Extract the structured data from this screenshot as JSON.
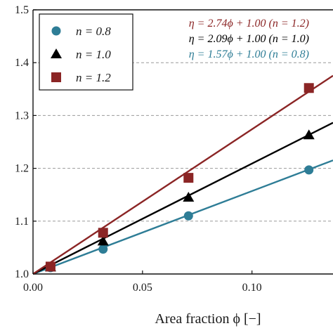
{
  "chart_data": {
    "type": "scatter",
    "xlabel": "Area fraction ϕ [−]",
    "ylabel": "",
    "xlim": [
      0.0,
      0.137
    ],
    "ylim": [
      1.0,
      1.5
    ],
    "x_ticks": [
      "0.00",
      "0.05",
      "0.10"
    ],
    "y_ticks": [
      "1.0",
      "1.1",
      "1.2",
      "1.3",
      "1.4",
      "1.5"
    ],
    "grid": "horizontal dashed",
    "legend_position": "top-left",
    "series": [
      {
        "name": "n = 0.8",
        "marker": "circle",
        "color": "#2e7d96",
        "points": [
          {
            "x": 0.008,
            "y": 1.012
          },
          {
            "x": 0.032,
            "y": 1.047
          },
          {
            "x": 0.071,
            "y": 1.11
          },
          {
            "x": 0.126,
            "y": 1.197
          }
        ],
        "fit": {
          "label": "η = 1.57ϕ + 1.00 (n = 0.8)",
          "slope": 1.57,
          "intercept": 1.0
        }
      },
      {
        "name": "n = 1.0",
        "marker": "triangle",
        "color": "#000000",
        "points": [
          {
            "x": 0.008,
            "y": 1.013
          },
          {
            "x": 0.032,
            "y": 1.062
          },
          {
            "x": 0.071,
            "y": 1.145
          },
          {
            "x": 0.126,
            "y": 1.263
          }
        ],
        "fit": {
          "label": "η = 2.09ϕ + 1.00 (n = 1.0)",
          "slope": 2.09,
          "intercept": 1.0
        }
      },
      {
        "name": "n = 1.2",
        "marker": "square",
        "color": "#8b2525",
        "points": [
          {
            "x": 0.008,
            "y": 1.014
          },
          {
            "x": 0.032,
            "y": 1.078
          },
          {
            "x": 0.071,
            "y": 1.182
          },
          {
            "x": 0.126,
            "y": 1.352
          }
        ],
        "fit": {
          "label": "η = 2.74ϕ + 1.00 (n = 1.2)",
          "slope": 2.74,
          "intercept": 1.0
        }
      }
    ],
    "annotations_order": [
      "n = 1.2",
      "n = 1.0",
      "n = 0.8"
    ]
  }
}
